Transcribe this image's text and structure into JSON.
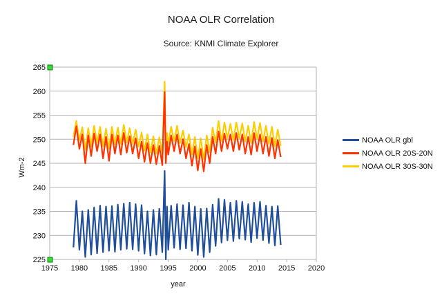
{
  "chart_data": {
    "type": "line",
    "title": "NOAA OLR Correlation",
    "subtitle": "Source: KNMI Climate Explorer",
    "xlabel": "year",
    "ylabel": "Wm-2",
    "xlim": [
      1975,
      2020
    ],
    "ylim": [
      225,
      265
    ],
    "x_ticks": [
      1975,
      1980,
      1985,
      1990,
      1995,
      2000,
      2005,
      2010,
      2015,
      2020
    ],
    "y_ticks": [
      225,
      230,
      235,
      240,
      245,
      250,
      255,
      260,
      265
    ],
    "grid": "horizontal",
    "legend_position": "right",
    "x_start": 1979.0,
    "x_end": 2014.0,
    "series": [
      {
        "name": "NOAA OLR gbl",
        "color": "#1f4e9a",
        "description": "monthly, strong annual cycle",
        "x": [
          1979.0,
          1979.5,
          1980.0,
          1980.5,
          1981.0,
          1981.5,
          1982.0,
          1982.5,
          1983.0,
          1983.5,
          1984.0,
          1984.5,
          1985.0,
          1985.5,
          1986.0,
          1986.5,
          1987.0,
          1987.5,
          1988.0,
          1988.5,
          1989.0,
          1989.5,
          1990.0,
          1990.5,
          1991.0,
          1991.5,
          1992.0,
          1992.5,
          1993.0,
          1993.5,
          1994.0,
          1994.4,
          1994.6,
          1994.8,
          1995.0,
          1995.5,
          1996.0,
          1996.5,
          1997.0,
          1997.5,
          1998.0,
          1998.5,
          1999.0,
          1999.5,
          2000.0,
          2000.5,
          2001.0,
          2001.5,
          2002.0,
          2002.5,
          2003.0,
          2003.5,
          2004.0,
          2004.5,
          2005.0,
          2005.5,
          2006.0,
          2006.5,
          2007.0,
          2007.5,
          2008.0,
          2008.5,
          2009.0,
          2009.5,
          2010.0,
          2010.5,
          2011.0,
          2011.5,
          2012.0,
          2012.5,
          2013.0,
          2013.5,
          2014.0
        ],
        "values": [
          227.5,
          237.2,
          227.0,
          235.0,
          225.5,
          235.3,
          226.0,
          235.8,
          226.3,
          236.2,
          226.5,
          236.0,
          226.8,
          236.1,
          226.6,
          236.4,
          227.0,
          236.6,
          227.2,
          236.8,
          227.1,
          236.5,
          226.8,
          236.3,
          226.2,
          235.0,
          225.8,
          235.3,
          226.0,
          235.5,
          226.5,
          243.4,
          225.0,
          236.0,
          227.0,
          236.2,
          227.4,
          236.5,
          227.1,
          236.3,
          227.3,
          236.8,
          226.8,
          236.0,
          225.9,
          235.5,
          225.5,
          235.6,
          226.5,
          236.4,
          227.8,
          237.6,
          228.5,
          237.4,
          229.0,
          236.8,
          228.8,
          237.2,
          229.3,
          237.0,
          229.1,
          236.5,
          228.6,
          236.8,
          229.4,
          237.0,
          229.0,
          236.2,
          228.4,
          236.0,
          227.9,
          236.1,
          228.0
        ]
      },
      {
        "name": "NOAA OLR 20S-20N",
        "color": "#ff3300",
        "x": [
          1979.0,
          1979.5,
          1980.0,
          1980.5,
          1981.0,
          1981.5,
          1982.0,
          1982.5,
          1983.0,
          1983.5,
          1984.0,
          1984.5,
          1985.0,
          1985.5,
          1986.0,
          1986.5,
          1987.0,
          1987.5,
          1988.0,
          1988.5,
          1989.0,
          1989.5,
          1990.0,
          1990.5,
          1991.0,
          1991.5,
          1992.0,
          1992.5,
          1993.0,
          1993.5,
          1994.0,
          1994.4,
          1994.6,
          1994.8,
          1995.0,
          1995.5,
          1996.0,
          1996.5,
          1997.0,
          1997.5,
          1998.0,
          1998.5,
          1999.0,
          1999.5,
          2000.0,
          2000.5,
          2001.0,
          2001.5,
          2002.0,
          2002.5,
          2003.0,
          2003.5,
          2004.0,
          2004.5,
          2005.0,
          2005.5,
          2006.0,
          2006.5,
          2007.0,
          2007.5,
          2008.0,
          2008.5,
          2009.0,
          2009.5,
          2010.0,
          2010.5,
          2011.0,
          2011.5,
          2012.0,
          2012.5,
          2013.0,
          2013.5,
          2014.0
        ],
        "values": [
          248.8,
          252.7,
          248.0,
          251.0,
          245.0,
          250.8,
          246.5,
          251.2,
          247.5,
          251.0,
          246.0,
          250.5,
          245.5,
          251.0,
          247.0,
          250.8,
          246.8,
          251.3,
          247.2,
          250.6,
          247.0,
          250.2,
          246.0,
          249.5,
          245.3,
          249.2,
          245.0,
          248.8,
          244.8,
          248.6,
          244.6,
          259.8,
          245.0,
          249.5,
          246.8,
          250.8,
          247.5,
          251.0,
          247.0,
          250.0,
          246.0,
          249.0,
          244.5,
          248.5,
          243.5,
          248.0,
          243.3,
          248.8,
          245.0,
          250.5,
          247.0,
          251.6,
          247.5,
          251.2,
          248.0,
          251.0,
          247.5,
          251.3,
          247.8,
          251.0,
          247.0,
          250.5,
          246.8,
          251.3,
          247.5,
          251.0,
          247.0,
          250.5,
          246.5,
          250.3,
          246.0,
          249.8,
          246.3
        ]
      },
      {
        "name": "NOAA OLR 30S-30N",
        "color": "#ffcc00",
        "x": [
          1979.0,
          1979.5,
          1980.0,
          1980.5,
          1981.0,
          1981.5,
          1982.0,
          1982.5,
          1983.0,
          1983.5,
          1984.0,
          1984.5,
          1985.0,
          1985.5,
          1986.0,
          1986.5,
          1987.0,
          1987.5,
          1988.0,
          1988.5,
          1989.0,
          1989.5,
          1990.0,
          1990.5,
          1991.0,
          1991.5,
          1992.0,
          1992.5,
          1993.0,
          1993.5,
          1994.0,
          1994.4,
          1994.6,
          1994.8,
          1995.0,
          1995.5,
          1996.0,
          1996.5,
          1997.0,
          1997.5,
          1998.0,
          1998.5,
          1999.0,
          1999.5,
          2000.0,
          2000.5,
          2001.0,
          2001.5,
          2002.0,
          2002.5,
          2003.0,
          2003.5,
          2004.0,
          2004.5,
          2005.0,
          2005.5,
          2006.0,
          2006.5,
          2007.0,
          2007.5,
          2008.0,
          2008.5,
          2009.0,
          2009.5,
          2010.0,
          2010.5,
          2011.0,
          2011.5,
          2012.0,
          2012.5,
          2013.0,
          2013.5,
          2014.0
        ],
        "values": [
          250.5,
          253.8,
          249.8,
          252.5,
          247.8,
          252.3,
          248.5,
          252.8,
          249.3,
          252.6,
          248.5,
          252.2,
          248.0,
          252.6,
          249.0,
          252.4,
          249.0,
          253.0,
          249.3,
          252.3,
          249.0,
          252.0,
          248.5,
          251.4,
          247.6,
          251.0,
          247.2,
          250.6,
          247.0,
          250.4,
          247.0,
          262.0,
          247.0,
          251.3,
          249.0,
          252.6,
          249.6,
          252.8,
          249.2,
          251.8,
          248.3,
          251.0,
          246.8,
          250.5,
          246.0,
          250.2,
          245.8,
          250.8,
          247.3,
          252.4,
          249.3,
          253.8,
          249.6,
          253.5,
          250.2,
          253.2,
          249.8,
          253.5,
          250.2,
          253.3,
          249.5,
          252.8,
          249.2,
          253.6,
          250.0,
          253.4,
          249.5,
          252.8,
          249.0,
          252.6,
          248.5,
          252.0,
          248.6
        ]
      }
    ]
  }
}
